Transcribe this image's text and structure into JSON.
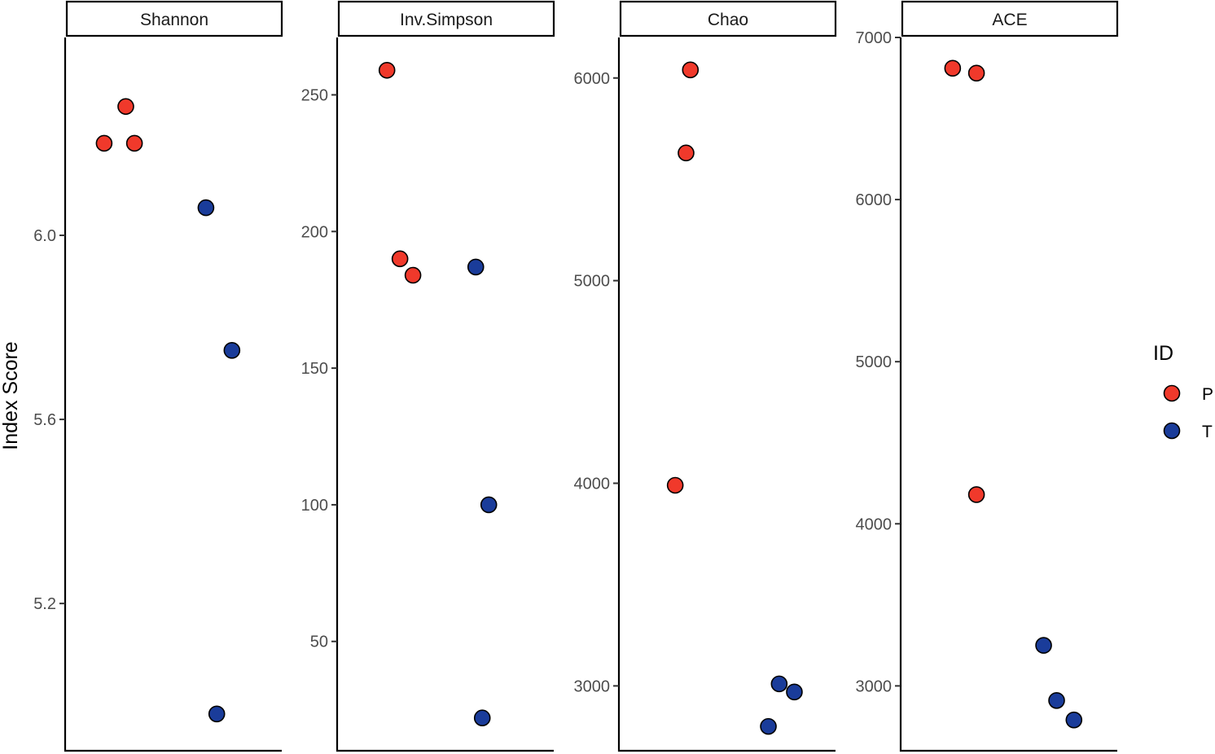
{
  "chart_data": {
    "type": "scatter",
    "ylabel": "Index Score",
    "legend": {
      "title": "ID",
      "position": "right",
      "entries": [
        {
          "label": "P",
          "color": "#f0392b"
        },
        {
          "label": "T",
          "color": "#1a3c9a"
        }
      ]
    },
    "grid": false,
    "facets": [
      {
        "title": "Shannon",
        "ylim": [
          4.88,
          6.43
        ],
        "yticks": [
          5.2,
          5.6,
          6.0
        ],
        "ytick_labels": [
          "5.2",
          "5.6",
          "6.0"
        ],
        "points": [
          {
            "group": "P",
            "jitter": 0.28,
            "y": 6.28
          },
          {
            "group": "P",
            "jitter": 0.18,
            "y": 6.2
          },
          {
            "group": "P",
            "jitter": 0.32,
            "y": 6.2
          },
          {
            "group": "T",
            "jitter": 0.65,
            "y": 6.06
          },
          {
            "group": "T",
            "jitter": 0.77,
            "y": 5.75
          },
          {
            "group": "T",
            "jitter": 0.7,
            "y": 4.96
          }
        ]
      },
      {
        "title": "Inv.Simpson",
        "ylim": [
          10,
          271
        ],
        "yticks": [
          50,
          100,
          150,
          200,
          250
        ],
        "ytick_labels": [
          "50",
          "100",
          "150",
          "200",
          "250"
        ],
        "points": [
          {
            "group": "P",
            "jitter": 0.23,
            "y": 259
          },
          {
            "group": "P",
            "jitter": 0.29,
            "y": 190
          },
          {
            "group": "P",
            "jitter": 0.35,
            "y": 184
          },
          {
            "group": "T",
            "jitter": 0.64,
            "y": 187
          },
          {
            "group": "T",
            "jitter": 0.7,
            "y": 100
          },
          {
            "group": "T",
            "jitter": 0.67,
            "y": 22
          }
        ]
      },
      {
        "title": "Chao",
        "ylim": [
          2680,
          6200
        ],
        "yticks": [
          3000,
          4000,
          5000,
          6000
        ],
        "ytick_labels": [
          "3000",
          "4000",
          "5000",
          "6000"
        ],
        "points": [
          {
            "group": "P",
            "jitter": 0.33,
            "y": 6040
          },
          {
            "group": "P",
            "jitter": 0.31,
            "y": 5630
          },
          {
            "group": "P",
            "jitter": 0.26,
            "y": 3990
          },
          {
            "group": "T",
            "jitter": 0.74,
            "y": 3010
          },
          {
            "group": "T",
            "jitter": 0.81,
            "y": 2970
          },
          {
            "group": "T",
            "jitter": 0.69,
            "y": 2800
          }
        ]
      },
      {
        "title": "ACE",
        "ylim": [
          2600,
          7000
        ],
        "yticks": [
          3000,
          4000,
          5000,
          6000,
          7000
        ],
        "ytick_labels": [
          "3000",
          "4000",
          "5000",
          "6000",
          "7000"
        ],
        "points": [
          {
            "group": "P",
            "jitter": 0.24,
            "y": 6810
          },
          {
            "group": "P",
            "jitter": 0.35,
            "y": 6780
          },
          {
            "group": "P",
            "jitter": 0.35,
            "y": 4180
          },
          {
            "group": "T",
            "jitter": 0.66,
            "y": 3250
          },
          {
            "group": "T",
            "jitter": 0.72,
            "y": 2910
          },
          {
            "group": "T",
            "jitter": 0.8,
            "y": 2790
          }
        ]
      }
    ]
  }
}
